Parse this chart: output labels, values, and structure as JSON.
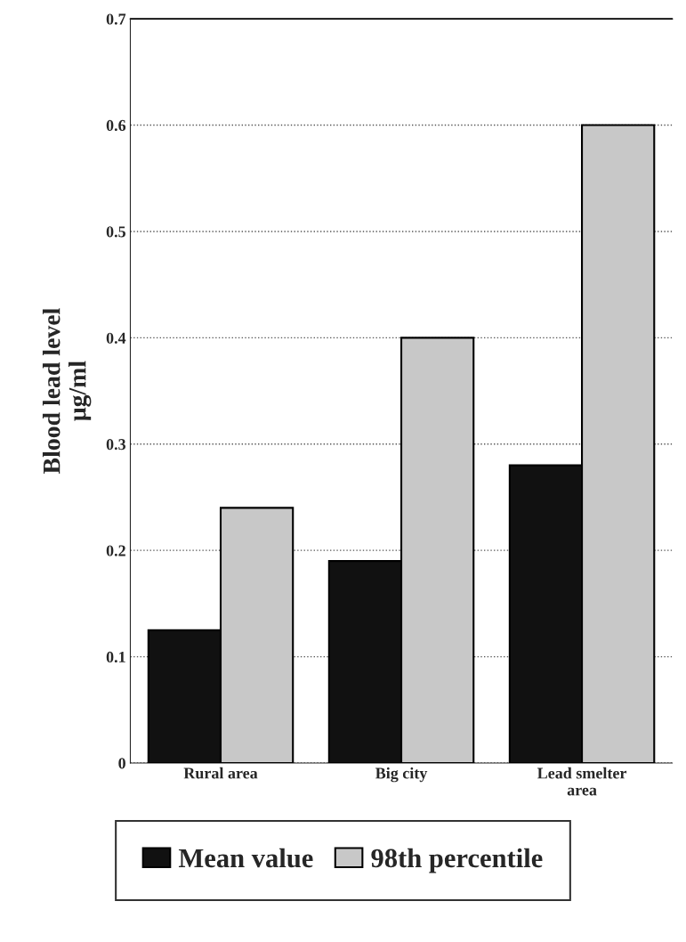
{
  "chart_data": {
    "type": "bar",
    "ylabel": "Blood lead level\nμg/ml",
    "categories": [
      "Rural area",
      "Big city",
      "Lead smelter\narea"
    ],
    "series": [
      {
        "name": "Mean value",
        "color": "#111111",
        "values": [
          0.125,
          0.19,
          0.28
        ]
      },
      {
        "name": "98th percentile",
        "color": "#c8c8c8",
        "values": [
          0.24,
          0.4,
          0.6
        ]
      }
    ],
    "ylim": [
      0,
      0.7
    ],
    "yticks": [
      0,
      0.1,
      0.2,
      0.3,
      0.4,
      0.5,
      0.6,
      0.7
    ],
    "grid": "y",
    "legend": "bottom"
  }
}
